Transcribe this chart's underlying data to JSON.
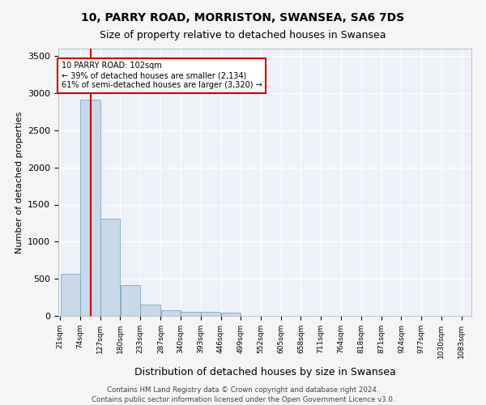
{
  "title1": "10, PARRY ROAD, MORRISTON, SWANSEA, SA6 7DS",
  "title2": "Size of property relative to detached houses in Swansea",
  "xlabel": "Distribution of detached houses by size in Swansea",
  "ylabel": "Number of detached properties",
  "footer1": "Contains HM Land Registry data © Crown copyright and database right 2024.",
  "footer2": "Contains public sector information licensed under the Open Government Licence v3.0.",
  "annotation_line1": "10 PARRY ROAD: 102sqm",
  "annotation_line2": "← 39% of detached houses are smaller (2,134)",
  "annotation_line3": "61% of semi-detached houses are larger (3,320) →",
  "red_line_x": 102,
  "bar_color": "#c8d8e8",
  "bar_edge_color": "#6699bb",
  "red_line_color": "#cc0000",
  "background_color": "#eef2f8",
  "grid_color": "#ffffff",
  "bin_edges": [
    21,
    74,
    127,
    180,
    233,
    287,
    340,
    393,
    446,
    499,
    552,
    605,
    658,
    711,
    764,
    818,
    871,
    924,
    977,
    1030,
    1083
  ],
  "bin_labels": [
    "21sqm",
    "74sqm",
    "127sqm",
    "180sqm",
    "233sqm",
    "287sqm",
    "340sqm",
    "393sqm",
    "446sqm",
    "499sqm",
    "552sqm",
    "605sqm",
    "658sqm",
    "711sqm",
    "764sqm",
    "818sqm",
    "871sqm",
    "924sqm",
    "977sqm",
    "1030sqm",
    "1083sqm"
  ],
  "bar_heights": [
    570,
    2910,
    1310,
    410,
    155,
    80,
    55,
    50,
    45,
    0,
    0,
    0,
    0,
    0,
    0,
    0,
    0,
    0,
    0,
    0
  ],
  "ylim": [
    0,
    3600
  ],
  "yticks": [
    0,
    500,
    1000,
    1500,
    2000,
    2500,
    3000,
    3500
  ]
}
